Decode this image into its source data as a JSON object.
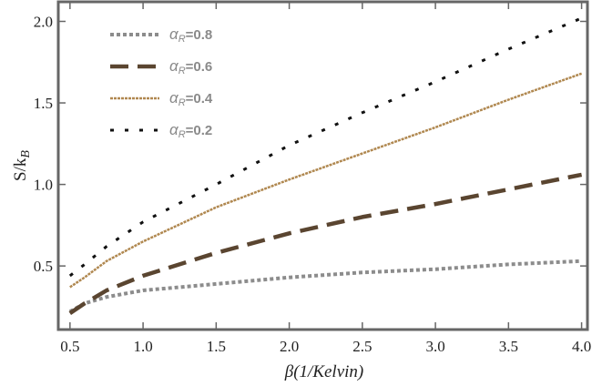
{
  "chart_data": {
    "type": "line",
    "title": "",
    "xlabel": "β(1/Kelvin)",
    "ylabel_main": "S/k",
    "ylabel_sub": "B",
    "xlim": [
      0.42,
      4.04
    ],
    "ylim": [
      0.11,
      2.12
    ],
    "xticks": [
      "0.5",
      "1.0",
      "1.5",
      "2.0",
      "2.5",
      "3.0",
      "3.5",
      "4.0"
    ],
    "yticks": [
      "0.5",
      "1.0",
      "1.5",
      "2.0"
    ],
    "grid": false,
    "legend_placement": "top-left",
    "x": [
      0.5,
      0.6,
      0.75,
      1.0,
      1.5,
      2.0,
      2.5,
      3.0,
      3.5,
      4.0
    ],
    "series": [
      {
        "name": "αR=0.8",
        "label_main": "α",
        "label_sub": "R",
        "label_val": "=0.8",
        "color": "#8c8c8c",
        "style": "dotted",
        "values": [
          0.22,
          0.27,
          0.31,
          0.35,
          0.39,
          0.43,
          0.46,
          0.48,
          0.51,
          0.53
        ]
      },
      {
        "name": "αR=0.6",
        "label_main": "α",
        "label_sub": "R",
        "label_val": "=0.6",
        "color": "#5a4530",
        "style": "long-dash",
        "values": [
          0.21,
          0.27,
          0.35,
          0.44,
          0.58,
          0.7,
          0.8,
          0.88,
          0.97,
          1.06
        ]
      },
      {
        "name": "αR=0.4",
        "label_main": "α",
        "label_sub": "R",
        "label_val": "=0.4",
        "color": "#b08850",
        "style": "fine-dash",
        "values": [
          0.37,
          0.43,
          0.53,
          0.65,
          0.86,
          1.03,
          1.19,
          1.35,
          1.52,
          1.68
        ]
      },
      {
        "name": "αR=0.2",
        "label_main": "α",
        "label_sub": "R",
        "label_val": "=0.2",
        "color": "#111111",
        "style": "short-dash",
        "values": [
          0.44,
          0.51,
          0.62,
          0.77,
          1.0,
          1.24,
          1.44,
          1.63,
          1.83,
          2.02
        ]
      }
    ]
  }
}
